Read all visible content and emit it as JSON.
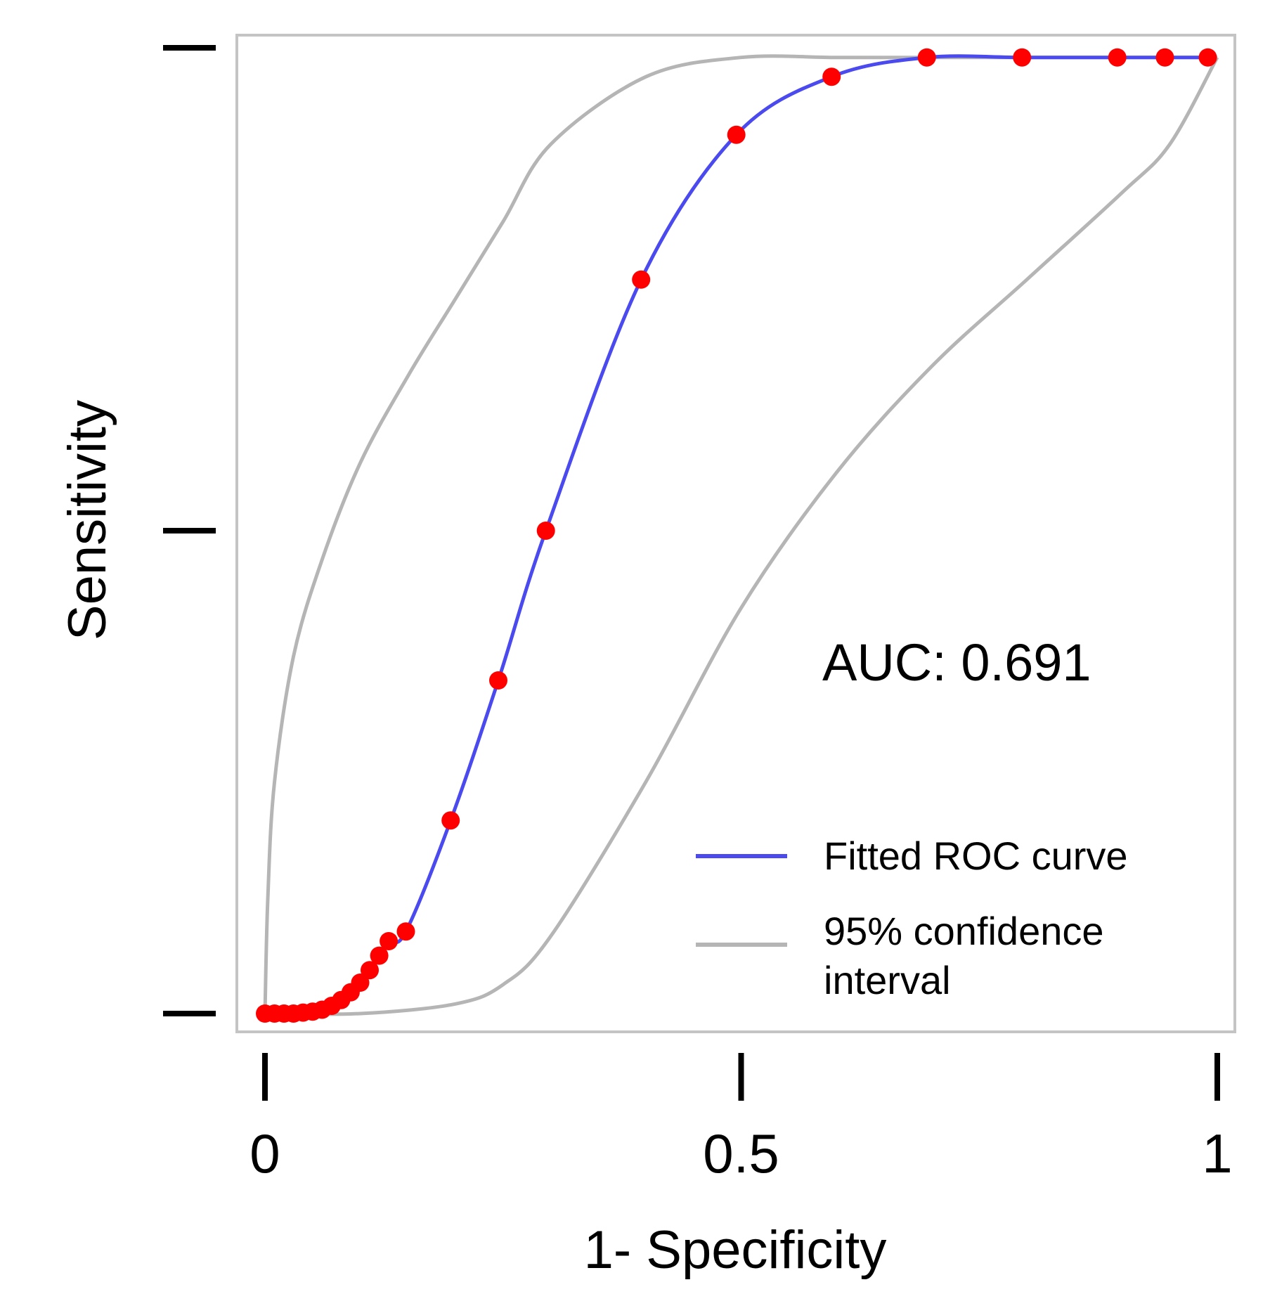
{
  "chart_data": {
    "type": "line",
    "title": "",
    "xlabel": "1- Specificity",
    "ylabel": "Sensitivity",
    "xlim": [
      0,
      1
    ],
    "ylim": [
      0,
      1
    ],
    "x_ticks": [
      {
        "value": 0,
        "label": "0"
      },
      {
        "value": 0.5,
        "label": "0.5"
      },
      {
        "value": 1,
        "label": "1"
      }
    ],
    "y_ticks": [
      0,
      0.5,
      1
    ],
    "annotation": "AUC: 0.691",
    "legend": {
      "position": "bottom-right",
      "items": [
        {
          "label": "Fitted ROC curve",
          "color": "#4a4aee"
        },
        {
          "label": "95% confidence",
          "label_line2": "interval",
          "color": "#b5b5b5"
        }
      ]
    },
    "series": [
      {
        "name": "Fitted ROC curve",
        "color": "#4a4aee",
        "marker_color": "#ff0000",
        "points": [
          [
            0.0,
            0.0
          ],
          [
            0.01,
            0.0
          ],
          [
            0.02,
            0.0
          ],
          [
            0.03,
            0.0
          ],
          [
            0.04,
            0.001
          ],
          [
            0.05,
            0.002
          ],
          [
            0.06,
            0.004
          ],
          [
            0.07,
            0.008
          ],
          [
            0.08,
            0.014
          ],
          [
            0.09,
            0.022
          ],
          [
            0.1,
            0.032
          ],
          [
            0.11,
            0.045
          ],
          [
            0.12,
            0.06
          ],
          [
            0.13,
            0.075
          ],
          [
            0.148,
            0.085
          ],
          [
            0.195,
            0.2
          ],
          [
            0.245,
            0.345
          ],
          [
            0.295,
            0.5
          ],
          [
            0.395,
            0.76
          ],
          [
            0.495,
            0.91
          ],
          [
            0.595,
            0.97
          ],
          [
            0.695,
            0.99
          ],
          [
            0.795,
            0.99
          ],
          [
            0.895,
            0.99
          ],
          [
            0.945,
            0.99
          ],
          [
            0.99,
            0.99
          ]
        ]
      },
      {
        "name": "95% confidence interval (upper)",
        "color": "#b5b5b5",
        "points": [
          [
            0.0,
            0.0
          ],
          [
            0.003,
            0.12
          ],
          [
            0.01,
            0.24
          ],
          [
            0.03,
            0.37
          ],
          [
            0.06,
            0.47
          ],
          [
            0.1,
            0.57
          ],
          [
            0.15,
            0.66
          ],
          [
            0.2,
            0.74
          ],
          [
            0.25,
            0.82
          ],
          [
            0.3,
            0.9
          ],
          [
            0.4,
            0.97
          ],
          [
            0.5,
            0.99
          ],
          [
            0.6,
            0.99
          ],
          [
            0.7,
            0.99
          ],
          [
            0.8,
            0.99
          ],
          [
            0.9,
            0.99
          ],
          [
            1.0,
            0.99
          ]
        ]
      },
      {
        "name": "95% confidence interval (lower)",
        "color": "#b5b5b5",
        "points": [
          [
            0.0,
            0.0
          ],
          [
            0.1,
            0.0
          ],
          [
            0.2,
            0.01
          ],
          [
            0.25,
            0.03
          ],
          [
            0.3,
            0.08
          ],
          [
            0.4,
            0.24
          ],
          [
            0.5,
            0.42
          ],
          [
            0.6,
            0.56
          ],
          [
            0.7,
            0.67
          ],
          [
            0.8,
            0.76
          ],
          [
            0.9,
            0.85
          ],
          [
            0.95,
            0.9
          ],
          [
            1.0,
            0.99
          ]
        ]
      }
    ]
  }
}
